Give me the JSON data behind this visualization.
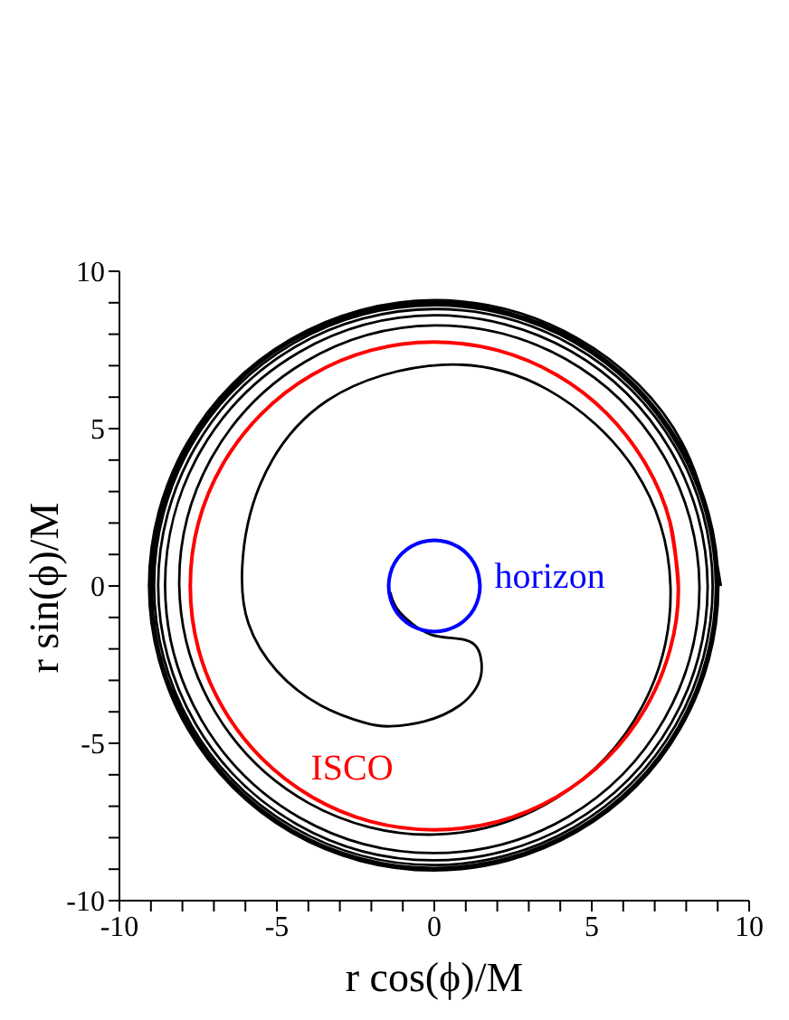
{
  "chart_data": {
    "type": "line",
    "xlabel": "r cos(ϕ)/M",
    "ylabel": "r sin(ϕ)/M",
    "xlim": [
      -10,
      10
    ],
    "ylim": [
      -10,
      10
    ],
    "xticks": [
      -10,
      {
        "value": -9,
        "label": null
      },
      {
        "value": -8,
        "label": null
      },
      {
        "value": -7,
        "label": null
      },
      {
        "value": -6,
        "label": null
      },
      -5,
      {
        "value": -4,
        "label": null
      },
      {
        "value": -3,
        "label": null
      },
      {
        "value": -2,
        "label": null
      },
      {
        "value": -1,
        "label": null
      },
      0,
      {
        "value": 1,
        "label": null
      },
      {
        "value": 2,
        "label": null
      },
      {
        "value": 3,
        "label": null
      },
      {
        "value": 4,
        "label": null
      },
      5,
      {
        "value": 6,
        "label": null
      },
      {
        "value": 7,
        "label": null
      },
      {
        "value": 8,
        "label": null
      },
      {
        "value": 9,
        "label": null
      },
      10
    ],
    "yticks": [
      -10,
      {
        "value": -9,
        "label": null
      },
      {
        "value": -8,
        "label": null
      },
      {
        "value": -7,
        "label": null
      },
      {
        "value": -6,
        "label": null
      },
      -5,
      {
        "value": -4,
        "label": null
      },
      {
        "value": -3,
        "label": null
      },
      {
        "value": -2,
        "label": null
      },
      {
        "value": -1,
        "label": null
      },
      0,
      {
        "value": 1,
        "label": null
      },
      {
        "value": 2,
        "label": null
      },
      {
        "value": 3,
        "label": null
      },
      {
        "value": 4,
        "label": null
      },
      5,
      {
        "value": 6,
        "label": null
      },
      {
        "value": 7,
        "label": null
      },
      {
        "value": 8,
        "label": null
      },
      {
        "value": 9,
        "label": null
      },
      10
    ],
    "marker": "none",
    "line_style": "solid",
    "grid": false,
    "legend": false,
    "series": [
      {
        "color": "#000000",
        "x": [
          9.1,
          7.87,
          4.55,
          0,
          -4.54,
          -7.85,
          -9.06,
          -7.84,
          -4.53,
          0,
          4.52,
          7.82,
          9.02,
          7.8,
          4.51,
          0,
          -4.5,
          -7.79,
          -8.98,
          -7.77,
          -4.49,
          0,
          4.48,
          7.75,
          8.94,
          7.73,
          4.47,
          0,
          -4.46,
          -7.72,
          -8.9,
          -7.7,
          -4.44,
          0,
          4.43,
          7.66,
          8.84,
          7.65,
          4.41,
          0,
          -4.4,
          -7.6,
          -8.77,
          -7.58,
          -4.37,
          0,
          4.36,
          7.53,
          8.68,
          7.49,
          4.32,
          0,
          -4.29,
          -7.42,
          -8.55,
          -7.39,
          -4.26,
          0,
          4.24,
          7.31,
          8.42,
          7.25,
          4.17,
          0,
          -4.11,
          -7.07,
          -8.1,
          -6.95,
          -3.99,
          0,
          3.89,
          6.61,
          7.5,
          6.37,
          3.6,
          0.3,
          -3.4,
          -5.54,
          -6.1,
          -5.9,
          -5.0,
          -3.6,
          -2.2,
          -1.4,
          -0.3,
          0.8,
          1.4,
          1.5,
          1.35,
          1.0,
          0.5,
          -0.1,
          -0.7,
          -1.2,
          -1.4
        ],
        "values": [
          0,
          4.55,
          7.87,
          9.08,
          7.85,
          4.54,
          0,
          -4.53,
          -7.84,
          -9.04,
          -7.82,
          -4.52,
          0,
          4.51,
          7.8,
          9.0,
          7.79,
          4.5,
          0,
          -4.49,
          -7.77,
          -8.96,
          -7.75,
          -4.48,
          0,
          4.47,
          7.73,
          8.92,
          7.72,
          4.46,
          0,
          -4.45,
          -7.69,
          -8.87,
          -7.67,
          -4.43,
          0,
          4.42,
          7.63,
          8.8,
          7.61,
          4.39,
          0,
          -4.38,
          -7.57,
          -8.72,
          -7.54,
          -4.35,
          0,
          4.33,
          7.47,
          8.6,
          7.43,
          4.29,
          0,
          -4.27,
          -7.37,
          -8.49,
          -7.34,
          -4.22,
          0,
          4.19,
          7.21,
          8.28,
          7.12,
          4.08,
          0,
          -4.02,
          -6.9,
          -7.9,
          -6.73,
          -3.82,
          0,
          3.68,
          6.24,
          7.03,
          5.89,
          3.2,
          0.6,
          -1.2,
          -2.7,
          -3.8,
          -4.35,
          -4.46,
          -4.3,
          -3.8,
          -3.1,
          -2.45,
          -1.95,
          -1.72,
          -1.65,
          -1.55,
          -1.2,
          -0.7,
          -0.2
        ]
      },
      {
        "name": "ISCO",
        "color": "#ff0000",
        "x": [
          7.75,
          7.49,
          6.71,
          5.48,
          3.88,
          2.01,
          0,
          -2.01,
          -3.88,
          -5.48,
          -6.71,
          -7.49,
          -7.75,
          -7.49,
          -6.71,
          -5.48,
          -3.88,
          -2.01,
          0,
          2.01,
          3.88,
          5.48,
          6.71,
          7.49,
          7.75,
          7.49
        ],
        "values": [
          0,
          2.01,
          3.88,
          5.48,
          6.71,
          7.49,
          7.75,
          7.49,
          6.71,
          5.48,
          3.88,
          2.01,
          0,
          -2.01,
          -3.88,
          -5.48,
          -6.71,
          -7.49,
          -7.75,
          -7.49,
          -6.71,
          -5.48,
          -3.88,
          -2.01,
          0,
          2.01
        ]
      },
      {
        "name": "horizon",
        "color": "#0000ff",
        "x": [
          1.45,
          1.4,
          1.26,
          1.03,
          0.73,
          0.38,
          0,
          -0.38,
          -0.73,
          -1.03,
          -1.26,
          -1.4,
          -1.45,
          -1.4,
          -1.26,
          -1.03,
          -0.73,
          -0.38,
          0,
          0.38,
          0.73,
          1.03,
          1.26,
          1.4,
          1.45,
          1.4
        ],
        "values": [
          0,
          0.38,
          0.73,
          1.03,
          1.26,
          1.4,
          1.45,
          1.4,
          1.26,
          1.03,
          0.73,
          0.38,
          0,
          -0.38,
          -0.73,
          -1.03,
          -1.26,
          -1.4,
          -1.45,
          -1.4,
          -1.26,
          -1.03,
          -0.73,
          -0.38,
          0,
          0.38
        ]
      }
    ]
  }
}
